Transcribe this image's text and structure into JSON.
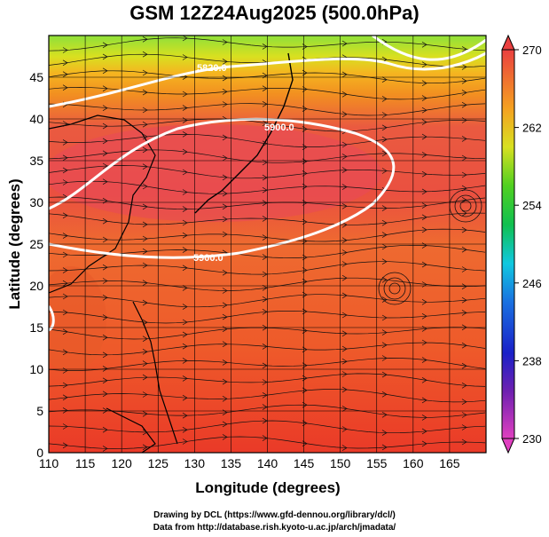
{
  "title": "GSM 12Z24Aug2025 (500.0hPa)",
  "map": {
    "xlabel": "Longitude (degrees)",
    "ylabel": "Latitude  (degrees)",
    "lon_range": [
      110,
      170
    ],
    "lat_range": [
      0,
      50
    ],
    "lon_ticks": [
      110,
      115,
      120,
      125,
      130,
      135,
      140,
      145,
      150,
      155,
      160,
      165
    ],
    "lat_ticks": [
      0,
      5,
      10,
      15,
      20,
      25,
      30,
      35,
      40,
      45
    ],
    "contour_labels": [
      "5820.0",
      "5900.0",
      "5900.0"
    ]
  },
  "colorbar": {
    "ticks": [
      230,
      238,
      246,
      254,
      262,
      270
    ],
    "range": [
      230,
      270
    ]
  },
  "credits": {
    "line1": "Drawing by DCL (https://www.gfd-dennou.org/library/dcl/)",
    "line2": "Data from http://database.rish.kyoto-u.ac.jp/arch/jmadata/"
  }
}
